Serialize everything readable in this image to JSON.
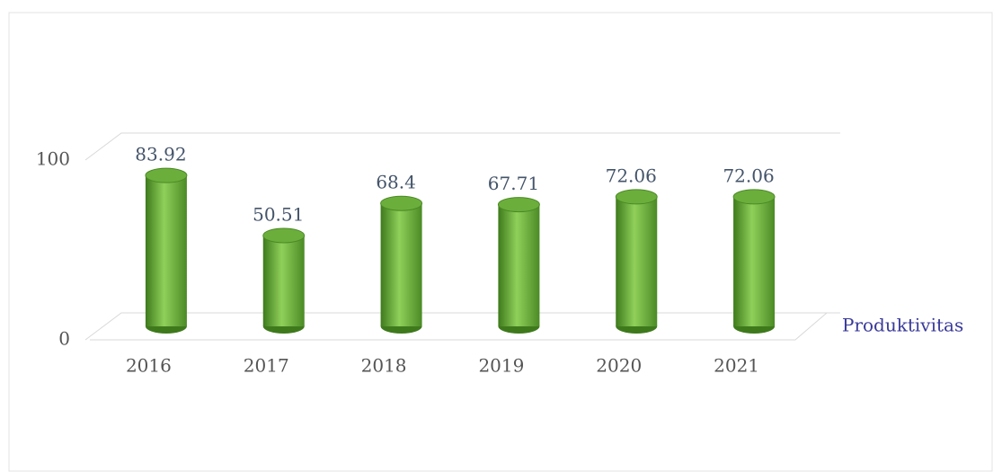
{
  "chart_data": {
    "type": "bar3d",
    "categories": [
      "2016",
      "2017",
      "2018",
      "2019",
      "2020",
      "2021"
    ],
    "series": [
      {
        "name": "Produktivitas",
        "color": "#6cae3c",
        "values": [
          83.92,
          50.51,
          68.4,
          67.71,
          72.06,
          72.06
        ]
      }
    ],
    "ylim": [
      0,
      100
    ],
    "yticks": [
      0,
      100
    ],
    "grid": true
  }
}
